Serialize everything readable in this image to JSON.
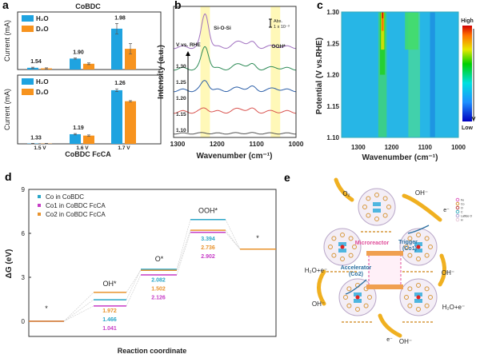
{
  "panels": {
    "a": "a",
    "b": "b",
    "c": "c",
    "d": "d",
    "e": "e"
  },
  "chart_data": [
    {
      "panel": "a",
      "type": "bar",
      "title": "CoBDC",
      "ylabel": "Current (mA)",
      "categories": [
        "1.5 V",
        "1.6 V",
        "1.7 V"
      ],
      "legend": [
        "H₂O",
        "D₂O"
      ],
      "series": [
        {
          "name": "H₂O",
          "values": [
            0.03,
            0.19,
            0.71
          ],
          "err": [
            0.01,
            0.01,
            0.09
          ],
          "color": "#1fa3e0"
        },
        {
          "name": "D₂O",
          "values": [
            0.02,
            0.1,
            0.36
          ],
          "err": [
            0.01,
            0.015,
            0.09
          ],
          "color": "#f7931e"
        }
      ],
      "annotations": [
        "1.54",
        "1.90",
        "1.98"
      ]
    },
    {
      "panel": "a",
      "type": "bar",
      "xlabel": "CoBDC FcCA",
      "ylabel": "Current (mA)",
      "categories": [
        "1.5 V",
        "1.6 V",
        "1.7 V"
      ],
      "legend": [
        "H₂O",
        "D₂O"
      ],
      "series": [
        {
          "name": "H₂O",
          "values": [
            0.005,
            0.14,
            0.78
          ],
          "err": [
            0.003,
            0.01,
            0.02
          ],
          "color": "#1fa3e0"
        },
        {
          "name": "D₂O",
          "values": [
            0.004,
            0.12,
            0.62
          ],
          "err": [
            0.003,
            0.01,
            0.01
          ],
          "color": "#f7931e"
        }
      ],
      "annotations": [
        "1.33",
        "1.19",
        "1.26"
      ]
    },
    {
      "panel": "b",
      "type": "line",
      "xlabel": "Wavenumber (cm⁻¹)",
      "ylabel": "Intensity (a.u.)",
      "xlim": [
        1310,
        1000
      ],
      "xticks": [
        "1300",
        "1200",
        "1100",
        "1000"
      ],
      "potential_label": "V vs. RHE",
      "scale_label": "Abs.",
      "scale_value": "1 x 10⁻³",
      "bands": [
        {
          "label": "Si-O-Si",
          "center": 1230
        },
        {
          "label": "OOH*",
          "center": 1052
        }
      ],
      "series": [
        {
          "name": "1.10",
          "color": "#555555",
          "peaks": [
            0.05,
            0.03,
            0.02,
            0.01
          ]
        },
        {
          "name": "1.15",
          "color": "#d9534f",
          "peaks": [
            0.35,
            0.3,
            0.2,
            0.05
          ]
        },
        {
          "name": "1.20",
          "color": "#2c5fa8",
          "peaks": [
            0.9,
            0.25,
            0.25,
            0.2
          ]
        },
        {
          "name": "1.25",
          "color": "#2e8b57",
          "peaks": [
            2.0,
            0.45,
            0.3,
            0.15
          ]
        },
        {
          "name": "1.30",
          "color": "#a070c0",
          "peaks": [
            3.0,
            0.55,
            0.35,
            0.12
          ]
        }
      ]
    },
    {
      "panel": "c",
      "type": "heatmap",
      "xlabel": "Wavenumber (cm⁻¹)",
      "ylabel": "Potential (V vs.RHE)",
      "xlim": [
        1350,
        1000
      ],
      "ylim": [
        1.1,
        1.3
      ],
      "xticks": [
        "1300",
        "1200",
        "1100",
        "1000"
      ],
      "yticks": [
        "1.10",
        "1.15",
        "1.20",
        "1.25",
        "1.30"
      ],
      "colorbar": {
        "high": "High",
        "low": "Low"
      }
    },
    {
      "panel": "d",
      "type": "line",
      "xlabel": "Reaction coordinate",
      "ylabel": "ΔG (eV)",
      "ylim": [
        -1,
        9
      ],
      "yticks": [
        "0",
        "3",
        "6",
        "9"
      ],
      "states": [
        "*",
        "OH*",
        "O*",
        "OOH*",
        "*"
      ],
      "series": [
        {
          "name": "Co   in CoBDC",
          "color": "#2aa6c8",
          "values": [
            0,
            1.466,
            3.548,
            6.942,
            4.92
          ],
          "steps": [
            "1.466",
            "2.082",
            "3.394"
          ]
        },
        {
          "name": "Co1 in CoBDC FcCA",
          "color": "#c63cc6",
          "values": [
            0,
            1.041,
            3.167,
            6.069,
            4.92
          ],
          "steps": [
            "1.041",
            "2.126",
            "2.902"
          ]
        },
        {
          "name": "Co2 in CoBDC FcCA",
          "color": "#e8932e",
          "values": [
            0,
            1.972,
            3.474,
            6.21,
            4.92
          ],
          "steps": [
            "1.972",
            "1.502",
            "2.736"
          ]
        }
      ]
    }
  ],
  "scheme": {
    "labels": {
      "o2": "O₂",
      "oh1": "OH⁻",
      "e1": "e⁻",
      "oh2": "OH⁻",
      "h2oe1": "H₂O+e⁻",
      "oh3": "OH⁻",
      "e2": "e⁻",
      "oh4": "OH⁻",
      "h2oe2": "H₂O+e⁻",
      "microreactor": "Microreactor",
      "trigger": "Trigger",
      "trigger2": "(Co1)",
      "accel": "Accelerator",
      "accel2": "(Co2)"
    },
    "legend": [
      "Fe",
      "Co",
      "O",
      "C",
      "Lattice O",
      "H"
    ]
  }
}
